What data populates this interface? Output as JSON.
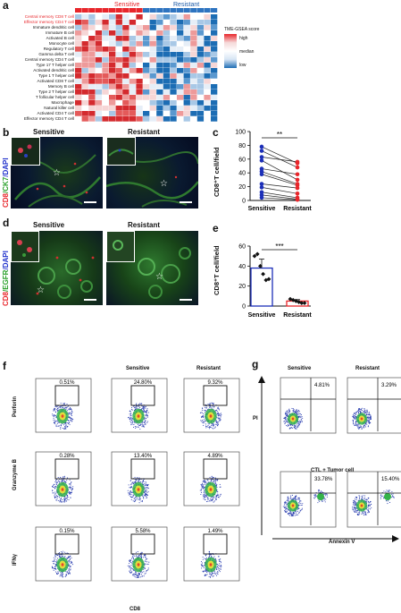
{
  "panels": {
    "a": "a",
    "b": "b",
    "c": "c",
    "d": "d",
    "e": "e",
    "f": "f",
    "g": "g"
  },
  "panel_a": {
    "group_sensitive": "Sensitive",
    "group_resistant": "Resistant",
    "legend_title": "TME-GSEA score",
    "legend_high": "high",
    "legend_median": "median",
    "legend_low": "low",
    "rows": [
      "Central memory CD8 T cell",
      "Effector memory CD4 T cell",
      "Immature dendritic cell",
      "Immature B cell",
      "Activated B cell",
      "Monocyte cell",
      "Regulatory T cell",
      "Gamma delta T cell",
      "Central memory CD4 T cell",
      "Type 17 T helper cell",
      "Activated dendritic cell",
      "Type 1 T helper cell",
      "Activated CD8 T cell",
      "Memory B cell",
      "Type 2 T helper cell",
      "T follicular helper cell",
      "Macrophage",
      "Natural killer cell",
      "Activated CD4 T cell",
      "Effector memory CD4 T cell"
    ],
    "highlight_color": "#e8262b"
  },
  "panel_b": {
    "sensitive": "Sensitive",
    "resistant": "Resistant",
    "ylabel_cd8": "CD8",
    "ylabel_ck7": "/CK7",
    "ylabel_dapi": "/DAPI"
  },
  "panel_d": {
    "sensitive": "Sensitive",
    "resistant": "Resistant",
    "ylabel_cd8": "CD8",
    "ylabel_egfr": "/EGFR",
    "ylabel_dapi": "/DAPI"
  },
  "panel_c": {
    "ylabel": "CD8⁺T cell/field",
    "significance": "**",
    "xlabels": [
      "Sensitive",
      "Resistant"
    ],
    "yticks": [
      "0",
      "20",
      "40",
      "60",
      "80",
      "100"
    ]
  },
  "panel_e": {
    "ylabel": "CD8⁺T cell/field",
    "significance": "***",
    "xlabels": [
      "Sensitive",
      "Resistant"
    ],
    "yticks": [
      "0",
      "20",
      "40",
      "60"
    ]
  },
  "panel_f": {
    "col_sensitive": "Sensitive",
    "col_resistant": "Resistant",
    "row_labels": [
      "Perforin",
      "Granzyme B",
      "IFNγ"
    ],
    "xlabel": "CD8",
    "percentages": [
      [
        "0.51%",
        "24.80%",
        "9.32%"
      ],
      [
        "0.28%",
        "13.40%",
        "4.89%"
      ],
      [
        "0.15%",
        "5.58%",
        "1.49%"
      ]
    ]
  },
  "panel_g": {
    "col_sensitive": "Sensitive",
    "col_resistant": "Resistant",
    "ylabel": "PI",
    "xlabel": "Annexin V",
    "middle_label": "CTL + Tumor cell",
    "percentages_top": [
      "4.81%",
      "3.29%"
    ],
    "percentages_bottom": [
      "33.78%",
      "15.40%"
    ]
  },
  "chart_data": [
    {
      "type": "scatter",
      "panel": "c",
      "xlabel": "",
      "ylabel": "CD8⁺T cell/field",
      "categories": [
        "Sensitive",
        "Resistant"
      ],
      "ylim": [
        0,
        100
      ],
      "significance": "**",
      "paired": true,
      "series": [
        {
          "values": [
            78,
            54
          ]
        },
        {
          "values": [
            72,
            48
          ]
        },
        {
          "values": [
            63,
            56
          ]
        },
        {
          "values": [
            58,
            30
          ]
        },
        {
          "values": [
            46,
            38
          ]
        },
        {
          "values": [
            42,
            24
          ]
        },
        {
          "values": [
            38,
            22
          ]
        },
        {
          "values": [
            24,
            18
          ]
        },
        {
          "values": [
            19,
            10
          ]
        },
        {
          "values": [
            12,
            4
          ]
        },
        {
          "values": [
            8,
            2
          ]
        },
        {
          "values": [
            4,
            1
          ]
        }
      ]
    },
    {
      "type": "bar",
      "panel": "e",
      "xlabel": "",
      "ylabel": "CD8⁺T cell/field",
      "categories": [
        "Sensitive",
        "Resistant"
      ],
      "values": [
        38,
        5
      ],
      "errors": [
        9,
        1.5
      ],
      "points": [
        [
          50,
          52,
          40,
          32,
          26,
          27
        ],
        [
          7,
          6,
          5,
          4,
          3,
          3
        ]
      ],
      "ylim": [
        0,
        60
      ],
      "significance": "***",
      "colors": [
        "#1c2fb8",
        "#e8262b"
      ]
    }
  ]
}
